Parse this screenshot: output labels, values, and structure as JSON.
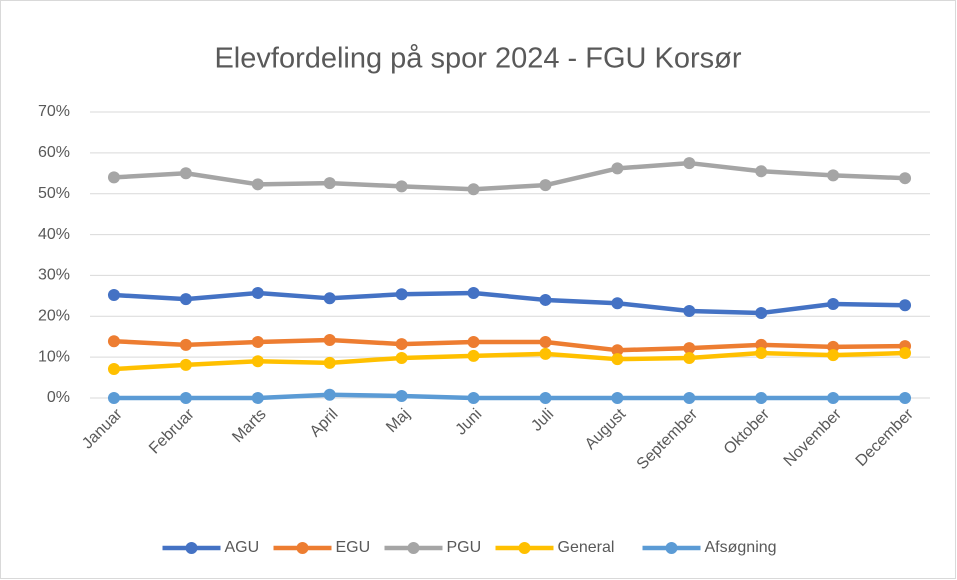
{
  "chart_data": {
    "type": "line",
    "title": "Elevfordeling på spor 2024 - FGU Korsør",
    "categories": [
      "Januar",
      "Februar",
      "Marts",
      "April",
      "Maj",
      "Juni",
      "Juli",
      "August",
      "September",
      "Oktober",
      "November",
      "December"
    ],
    "series": [
      {
        "name": "AGU",
        "color": "#4472c4",
        "values": [
          25.2,
          24.2,
          25.7,
          24.4,
          25.4,
          25.7,
          24.0,
          23.2,
          21.3,
          20.8,
          23.0,
          22.7
        ]
      },
      {
        "name": "EGU",
        "color": "#ed7d31",
        "values": [
          13.9,
          13.0,
          13.7,
          14.2,
          13.2,
          13.7,
          13.7,
          11.7,
          12.2,
          13.0,
          12.5,
          12.7
        ]
      },
      {
        "name": "PGU",
        "color": "#a5a5a5",
        "values": [
          54.0,
          55.0,
          52.3,
          52.6,
          51.8,
          51.1,
          52.1,
          56.2,
          57.5,
          55.5,
          54.5,
          53.8
        ]
      },
      {
        "name": "General",
        "color": "#ffc000",
        "values": [
          7.1,
          8.1,
          9.0,
          8.6,
          9.8,
          10.3,
          10.8,
          9.5,
          9.8,
          11.0,
          10.5,
          11.0
        ]
      },
      {
        "name": "Afsøgning",
        "color": "#5b9bd5",
        "values": [
          0,
          0,
          0,
          0.8,
          0.5,
          0,
          0,
          0,
          0,
          0,
          0,
          0
        ]
      }
    ],
    "ylim": [
      0,
      70
    ],
    "yticks": [
      {
        "value": 0,
        "label": "0%"
      },
      {
        "value": 10,
        "label": "10%"
      },
      {
        "value": 20,
        "label": "20%"
      },
      {
        "value": 30,
        "label": "30%"
      },
      {
        "value": 40,
        "label": "40%"
      },
      {
        "value": 50,
        "label": "50%"
      },
      {
        "value": 60,
        "label": "60%"
      },
      {
        "value": 70,
        "label": "70%"
      }
    ],
    "grid": true,
    "legend": "bottom"
  }
}
